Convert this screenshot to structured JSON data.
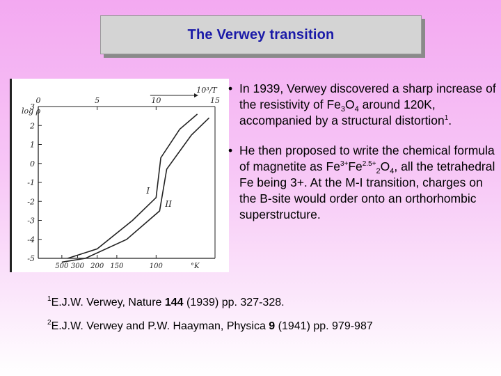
{
  "slide": {
    "title": "The Verwey transition"
  },
  "bullets": [
    {
      "prefix": "In 1939, Verwey discovered a sharp increase of the resistivity of Fe",
      "sub1": "3",
      "mid": "O",
      "sub2": "4",
      "suffix": " around 120K, accompanied by a structural distortion",
      "sup": "1",
      "end": "."
    },
    {
      "p1": "He then proposed to write the chemical formula of magnetite as Fe",
      "sup1": "3+",
      "p2": "Fe",
      "sup2": "2.5+",
      "sub1": "2",
      "p3": "O",
      "sub2": "4",
      "p4": ", all the tetrahedral Fe being 3+.  At the M-I transition, charges on the B-site would order onto an orthorhombic superstructure."
    }
  ],
  "references": [
    {
      "num": "1",
      "pre": "E.J.W. Verwey, Nature ",
      "vol": "144",
      "post": " (1939) pp. 327-328."
    },
    {
      "num": "2",
      "pre": "E.J.W. Verwey and P.W. Haayman, Physica ",
      "vol": "9",
      "post": " (1941) pp. 979-987"
    }
  ],
  "chart_data": {
    "type": "line",
    "ylabel": "log ρ",
    "top_axis_label": "10³/T",
    "bottom_axis_label": "°K",
    "top_ticks": [
      "0",
      "5",
      "10",
      "15"
    ],
    "bottom_ticks": [
      "500",
      "300",
      "200",
      "150",
      "100"
    ],
    "y_ticks": [
      "3",
      "2",
      "1",
      "0",
      "-1",
      "-2",
      "-3",
      "-4",
      "-5"
    ],
    "ylim": [
      -5,
      3
    ],
    "xlim_top": [
      0,
      15
    ],
    "series": [
      {
        "name": "I",
        "points": [
          [
            2.5,
            -5.0
          ],
          [
            5.0,
            -4.5
          ],
          [
            8.0,
            -3.0
          ],
          [
            10.0,
            -1.8
          ],
          [
            10.4,
            0.3
          ],
          [
            12.0,
            1.8
          ],
          [
            13.5,
            2.6
          ]
        ]
      },
      {
        "name": "II",
        "points": [
          [
            2.0,
            -5.2
          ],
          [
            4.0,
            -5.0
          ],
          [
            7.5,
            -4.0
          ],
          [
            10.3,
            -2.5
          ],
          [
            10.9,
            -0.3
          ],
          [
            13.0,
            1.5
          ],
          [
            14.5,
            2.4
          ]
        ]
      }
    ]
  }
}
